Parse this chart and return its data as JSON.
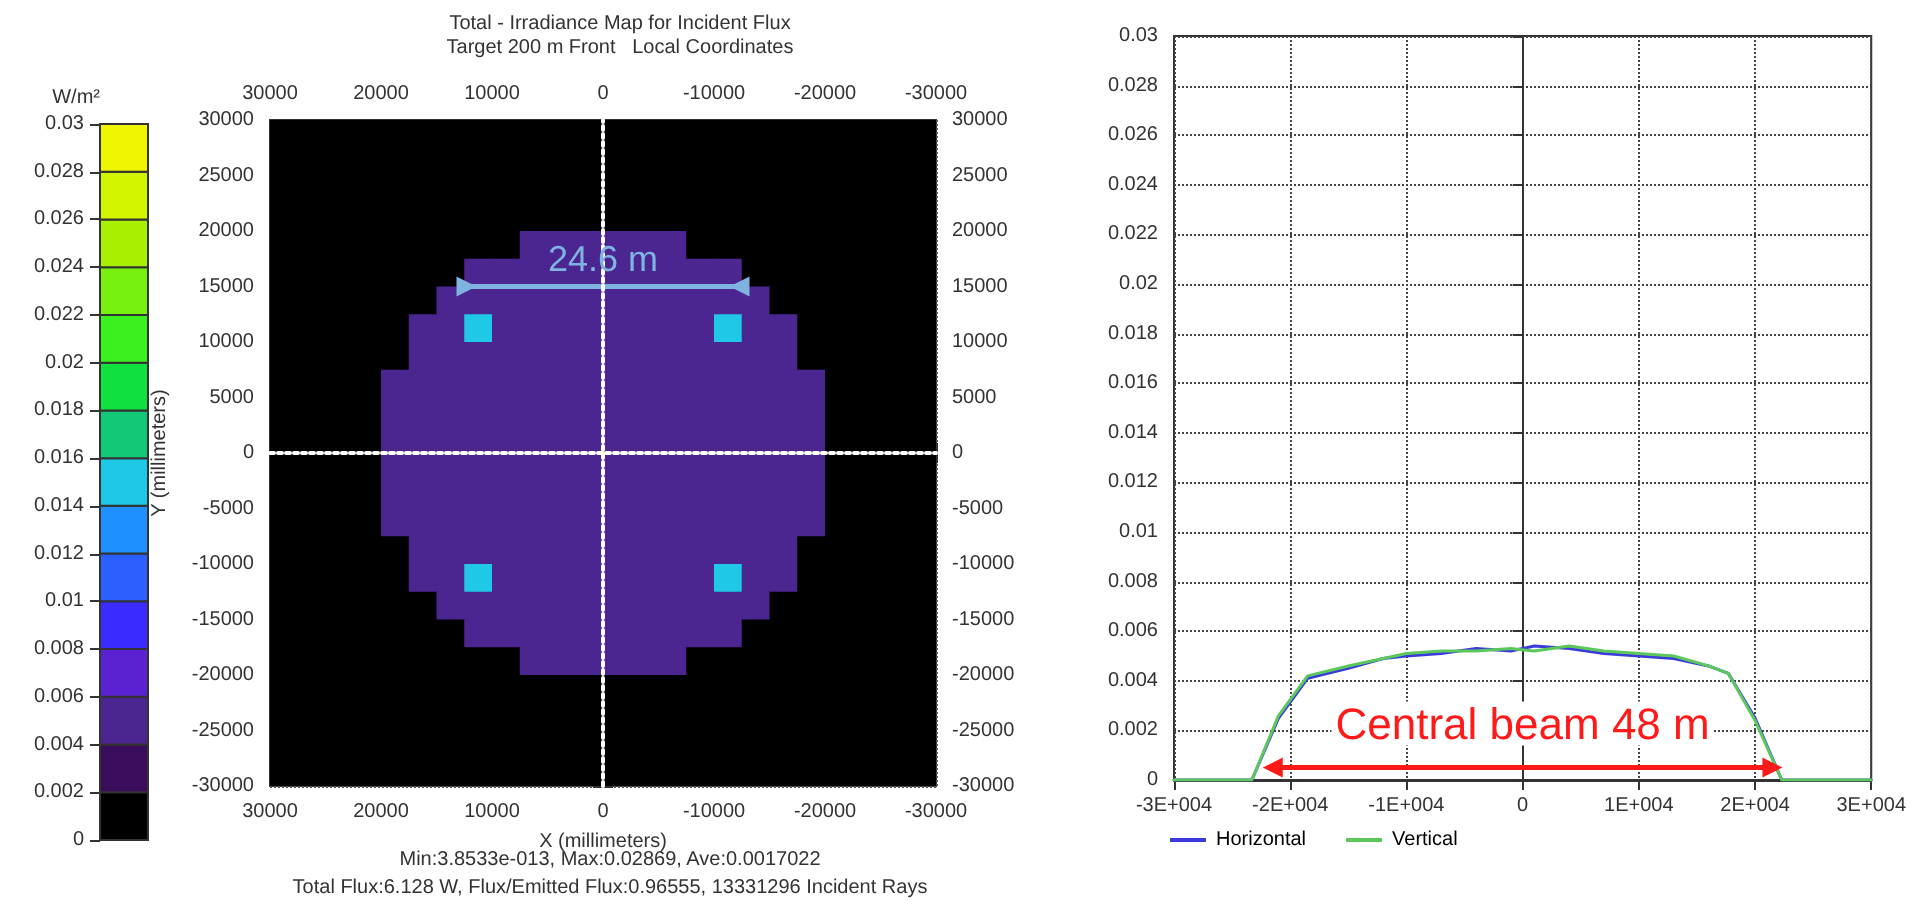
{
  "chart_data": [
    {
      "type": "heatmap",
      "title": "Total - Irradiance Map for Incident Flux",
      "subtitle": "Target 200 m Front   Local Coordinates",
      "xlabel": "X (millimeters)",
      "ylabel": "Y (millimeters)",
      "clabel": "W/m²",
      "xlim": [
        30000,
        -30000
      ],
      "xticks": [
        30000,
        {
          "value": 25000,
          "label": null
        },
        20000,
        {
          "value": 15000,
          "label": null
        },
        10000,
        {
          "value": 5000,
          "label": null
        },
        0,
        {
          "value": -5000,
          "label": null
        },
        -10000,
        {
          "value": -15000,
          "label": null
        },
        -20000,
        {
          "value": -25000,
          "label": null
        },
        -30000
      ],
      "x2lim": [
        30000,
        -30000
      ],
      "x2ticks": [
        30000,
        20000,
        10000,
        0,
        -10000,
        -20000,
        -30000
      ],
      "ylim": [
        -30000,
        30000
      ],
      "yticks": [
        -30000,
        -25000,
        -20000,
        -15000,
        -10000,
        -5000,
        0,
        5000,
        10000,
        15000,
        20000,
        25000,
        30000
      ],
      "y2lim": [
        -30000,
        30000
      ],
      "y2ticks": [
        -30000,
        -25000,
        -20000,
        -15000,
        -10000,
        -5000,
        0,
        5000,
        10000,
        15000,
        20000,
        25000,
        30000
      ],
      "clim": [
        0,
        0.03
      ],
      "cticks": [
        0,
        0.002,
        0.004,
        0.006,
        0.008,
        0.01,
        0.012,
        0.014,
        0.016,
        0.018,
        0.02,
        0.022,
        0.024,
        0.026,
        0.028,
        0.03
      ],
      "grid": true,
      "cells": [
        [
          0,
          0,
          0,
          0,
          0,
          0,
          0,
          0,
          0,
          0,
          0,
          0,
          0,
          0,
          0,
          0,
          0,
          0,
          0,
          0,
          0,
          0,
          0,
          0
        ],
        [
          0,
          0,
          0,
          0,
          0,
          0,
          0,
          0,
          0,
          0,
          0,
          0,
          0,
          0,
          0,
          0,
          0,
          0,
          0,
          0,
          0,
          0,
          0,
          0
        ],
        [
          0,
          0,
          0,
          0,
          0,
          0,
          0,
          0,
          0,
          0,
          0,
          0,
          0,
          0,
          0,
          0,
          0,
          0,
          0,
          0,
          0,
          0,
          0,
          0
        ],
        [
          0,
          0,
          0,
          0,
          0,
          0,
          0,
          0,
          0,
          0,
          0,
          0,
          0,
          0,
          0,
          0,
          0,
          0,
          0,
          0,
          0,
          0,
          0,
          0
        ],
        [
          0,
          0,
          0,
          0,
          0,
          0,
          0,
          0,
          0,
          0.005,
          0.005,
          0.005,
          0.005,
          0.005,
          0.005,
          0,
          0,
          0,
          0,
          0,
          0,
          0,
          0,
          0
        ],
        [
          0,
          0,
          0,
          0,
          0,
          0,
          0,
          0.005,
          0.005,
          0.005,
          0.005,
          0.005,
          0.005,
          0.005,
          0.005,
          0.005,
          0.005,
          0,
          0,
          0,
          0,
          0,
          0,
          0
        ],
        [
          0,
          0,
          0,
          0,
          0,
          0,
          0.005,
          0.005,
          0.005,
          0.005,
          0.005,
          0.005,
          0.005,
          0.005,
          0.005,
          0.005,
          0.005,
          0.005,
          0,
          0,
          0,
          0,
          0,
          0
        ],
        [
          0,
          0,
          0,
          0,
          0,
          0.005,
          0.005,
          0.015,
          0.005,
          0.005,
          0.005,
          0.005,
          0.005,
          0.005,
          0.005,
          0.005,
          0.015,
          0.005,
          0.005,
          0,
          0,
          0,
          0,
          0
        ],
        [
          0,
          0,
          0,
          0,
          0,
          0.005,
          0.005,
          0.005,
          0.005,
          0.005,
          0.005,
          0.005,
          0.005,
          0.005,
          0.005,
          0.005,
          0.005,
          0.005,
          0.005,
          0,
          0,
          0,
          0,
          0
        ],
        [
          0,
          0,
          0,
          0,
          0.005,
          0.005,
          0.005,
          0.005,
          0.005,
          0.005,
          0.005,
          0.005,
          0.005,
          0.005,
          0.005,
          0.005,
          0.005,
          0.005,
          0.005,
          0.005,
          0,
          0,
          0,
          0
        ],
        [
          0,
          0,
          0,
          0,
          0.005,
          0.005,
          0.005,
          0.005,
          0.005,
          0.005,
          0.005,
          0.005,
          0.005,
          0.005,
          0.005,
          0.005,
          0.005,
          0.005,
          0.005,
          0.005,
          0,
          0,
          0,
          0
        ],
        [
          0,
          0,
          0,
          0,
          0.005,
          0.005,
          0.005,
          0.005,
          0.005,
          0.005,
          0.005,
          0.005,
          0.005,
          0.005,
          0.005,
          0.005,
          0.005,
          0.005,
          0.005,
          0.005,
          0,
          0,
          0,
          0
        ],
        [
          0,
          0,
          0,
          0,
          0.005,
          0.005,
          0.005,
          0.005,
          0.005,
          0.005,
          0.005,
          0.005,
          0.005,
          0.005,
          0.005,
          0.005,
          0.005,
          0.005,
          0.005,
          0.005,
          0,
          0,
          0,
          0
        ],
        [
          0,
          0,
          0,
          0,
          0.005,
          0.005,
          0.005,
          0.005,
          0.005,
          0.005,
          0.005,
          0.005,
          0.005,
          0.005,
          0.005,
          0.005,
          0.005,
          0.005,
          0.005,
          0.005,
          0,
          0,
          0,
          0
        ],
        [
          0,
          0,
          0,
          0,
          0.005,
          0.005,
          0.005,
          0.005,
          0.005,
          0.005,
          0.005,
          0.005,
          0.005,
          0.005,
          0.005,
          0.005,
          0.005,
          0.005,
          0.005,
          0.005,
          0,
          0,
          0,
          0
        ],
        [
          0,
          0,
          0,
          0,
          0,
          0.005,
          0.005,
          0.005,
          0.005,
          0.005,
          0.005,
          0.005,
          0.005,
          0.005,
          0.005,
          0.005,
          0.005,
          0.005,
          0.005,
          0,
          0,
          0,
          0,
          0
        ],
        [
          0,
          0,
          0,
          0,
          0,
          0.005,
          0.005,
          0.015,
          0.005,
          0.005,
          0.005,
          0.005,
          0.005,
          0.005,
          0.005,
          0.005,
          0.015,
          0.005,
          0.005,
          0,
          0,
          0,
          0,
          0
        ],
        [
          0,
          0,
          0,
          0,
          0,
          0,
          0.005,
          0.005,
          0.005,
          0.005,
          0.005,
          0.005,
          0.005,
          0.005,
          0.005,
          0.005,
          0.005,
          0.005,
          0,
          0,
          0,
          0,
          0,
          0
        ],
        [
          0,
          0,
          0,
          0,
          0,
          0,
          0,
          0.005,
          0.005,
          0.005,
          0.005,
          0.005,
          0.005,
          0.005,
          0.005,
          0.005,
          0.005,
          0,
          0,
          0,
          0,
          0,
          0,
          0
        ],
        [
          0,
          0,
          0,
          0,
          0,
          0,
          0,
          0,
          0,
          0.005,
          0.005,
          0.005,
          0.005,
          0.005,
          0.005,
          0,
          0,
          0,
          0,
          0,
          0,
          0,
          0,
          0
        ],
        [
          0,
          0,
          0,
          0,
          0,
          0,
          0,
          0,
          0,
          0,
          0,
          0,
          0,
          0,
          0,
          0,
          0,
          0,
          0,
          0,
          0,
          0,
          0,
          0
        ],
        [
          0,
          0,
          0,
          0,
          0,
          0,
          0,
          0,
          0,
          0,
          0,
          0,
          0,
          0,
          0,
          0,
          0,
          0,
          0,
          0,
          0,
          0,
          0,
          0
        ],
        [
          0,
          0,
          0,
          0,
          0,
          0,
          0,
          0,
          0,
          0,
          0,
          0,
          0,
          0,
          0,
          0,
          0,
          0,
          0,
          0,
          0,
          0,
          0,
          0
        ],
        [
          0,
          0,
          0,
          0,
          0,
          0,
          0,
          0,
          0,
          0,
          0,
          0,
          0,
          0,
          0,
          0,
          0,
          0,
          0,
          0,
          0,
          0,
          0,
          0
        ]
      ],
      "series": [
        {
          "type": "line",
          "color": "#7fb3e0",
          "x": [
            12300,
            -12300
          ],
          "values": [
            15000,
            15000
          ],
          "marker": "triangle"
        },
        {
          "type": "line",
          "color": "#ffffff",
          "line_style": "dotted",
          "x": [
            0,
            0
          ],
          "values": [
            -30000,
            30000
          ]
        },
        {
          "type": "line",
          "color": "#ffffff",
          "line_style": "dotted",
          "x": [
            30000,
            -30000
          ],
          "values": [
            0,
            0
          ]
        }
      ],
      "annotations": [
        "24.6 m",
        "Min:3.8533e-013, Max:0.02869, Ave:0.0017022",
        "Total Flux:6.128 W, Flux/Emitted Flux:0.96555, 13331296 Incident Rays"
      ]
    },
    {
      "type": "line",
      "xlim": [
        -30000,
        30000
      ],
      "xticks": [
        {
          "value": -30000,
          "label": "-3E+004"
        },
        {
          "value": -20000,
          "label": "-2E+004"
        },
        {
          "value": -10000,
          "label": "-1E+004"
        },
        0,
        {
          "value": 10000,
          "label": "1E+004"
        },
        {
          "value": 20000,
          "label": "2E+004"
        },
        {
          "value": 30000,
          "label": "3E+004"
        }
      ],
      "ylim": [
        0,
        0.03
      ],
      "yticks": [
        0,
        0.002,
        0.004,
        0.006,
        0.008,
        0.01,
        0.012,
        0.014,
        0.016,
        0.018,
        0.02,
        0.022,
        0.024,
        0.026,
        0.028,
        0.03
      ],
      "grid": true,
      "legend": "bottom left",
      "series": [
        {
          "name": "Horizontal",
          "color": "#3b3bdc",
          "x": [
            -30000,
            -23300,
            -21000,
            -18500,
            -15000,
            -12000,
            -10000,
            -7000,
            -4000,
            -1000,
            1000,
            4000,
            7000,
            10000,
            13000,
            16000,
            17700,
            20000,
            22300,
            30000
          ],
          "values": [
            0,
            0,
            0.0025,
            0.0041,
            0.0045,
            0.0049,
            0.005,
            0.0051,
            0.0053,
            0.0052,
            0.0054,
            0.0053,
            0.0051,
            0.005,
            0.0049,
            0.0046,
            0.0043,
            0.0025,
            0,
            0
          ]
        },
        {
          "name": "Vertical",
          "color": "#5cc85c",
          "x": [
            -30000,
            -23300,
            -21000,
            -18500,
            -15000,
            -12000,
            -10000,
            -7000,
            -4000,
            -1000,
            1000,
            4000,
            7000,
            10000,
            13000,
            16000,
            17700,
            20000,
            22300,
            30000
          ],
          "values": [
            0,
            0,
            0.0026,
            0.0042,
            0.0046,
            0.0049,
            0.0051,
            0.0052,
            0.0052,
            0.0053,
            0.0052,
            0.0054,
            0.0052,
            0.0051,
            0.005,
            0.0046,
            0.0043,
            0.0024,
            0,
            0
          ]
        },
        {
          "type": "line",
          "color": "#ff1a1a",
          "x": [
            -21500,
            21500
          ],
          "values": [
            0.0005,
            0.0005
          ],
          "marker": "triangle"
        }
      ],
      "annotations": [
        "Central beam 48 m"
      ]
    }
  ]
}
